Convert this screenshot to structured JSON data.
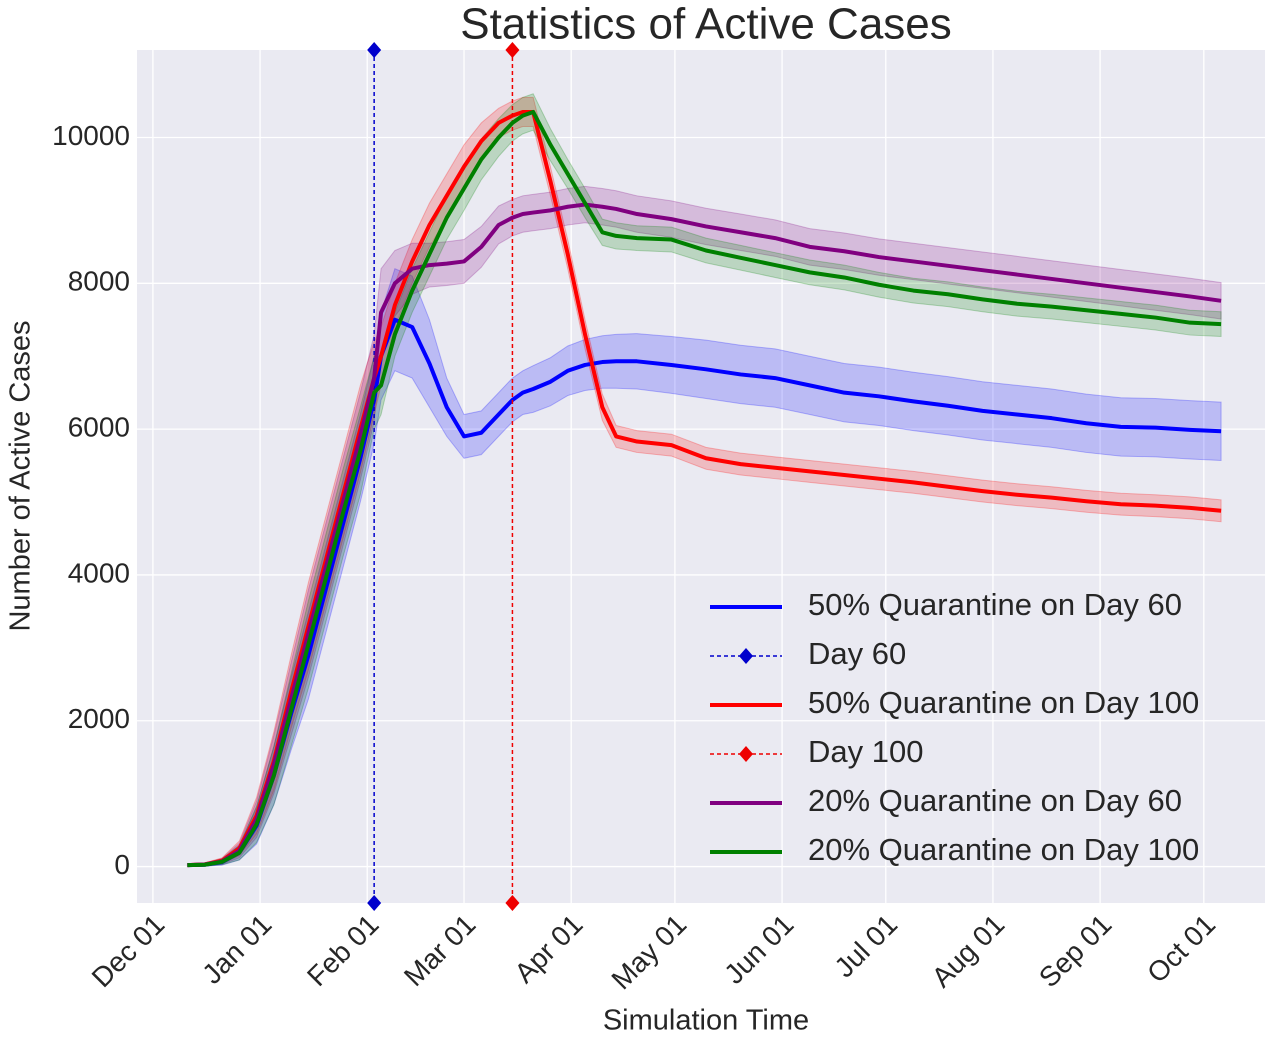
{
  "chart_data": {
    "type": "line",
    "title": "Statistics of Active Cases",
    "xlabel": "Simulation Time",
    "ylabel": "Number of Active Cases",
    "x": [
      10,
      15,
      20,
      25,
      30,
      35,
      40,
      45,
      50,
      55,
      60,
      64,
      66,
      70,
      75,
      80,
      85,
      90,
      95,
      100,
      104,
      107,
      110,
      115,
      120,
      125,
      130,
      134,
      140,
      150,
      160,
      170,
      180,
      190,
      200,
      210,
      220,
      230,
      240,
      250,
      260,
      270,
      280,
      290,
      300,
      309
    ],
    "xlim": [
      -4.6,
      321.7
    ],
    "xticks": [
      {
        "value": 0,
        "label": "Dec 01"
      },
      {
        "value": 31,
        "label": "Jan 01"
      },
      {
        "value": 62,
        "label": "Feb 01"
      },
      {
        "value": 90,
        "label": "Mar 01"
      },
      {
        "value": 121,
        "label": "Apr 01"
      },
      {
        "value": 151,
        "label": "May 01"
      },
      {
        "value": 182,
        "label": "Jun 01"
      },
      {
        "value": 212,
        "label": "Jul 01"
      },
      {
        "value": 243,
        "label": "Aug 01"
      },
      {
        "value": 274,
        "label": "Sep 01"
      },
      {
        "value": 304,
        "label": "Oct 01"
      }
    ],
    "ylim": [
      -500,
      11200
    ],
    "yticks": [
      0,
      2000,
      4000,
      6000,
      8000,
      10000
    ],
    "grid": true,
    "legend": "lower right",
    "series": [
      {
        "name": "50% Quarantine on Day 60",
        "color": "#0000ff",
        "values": [
          20,
          25,
          60,
          190,
          560,
          1250,
          2100,
          2900,
          3800,
          4700,
          5600,
          6400,
          7000,
          7500,
          7400,
          6900,
          6300,
          5900,
          5950,
          6200,
          6400,
          6500,
          6550,
          6650,
          6800,
          6880,
          6920,
          6930,
          6930,
          6880,
          6820,
          6750,
          6700,
          6600,
          6500,
          6450,
          6380,
          6320,
          6250,
          6200,
          6150,
          6080,
          6030,
          6020,
          5990,
          5970
        ],
        "errors": [
          20,
          20,
          40,
          100,
          250,
          400,
          500,
          600,
          600,
          600,
          600,
          600,
          600,
          700,
          700,
          600,
          400,
          300,
          300,
          300,
          300,
          300,
          320,
          330,
          340,
          350,
          360,
          370,
          380,
          390,
          400,
          400,
          400,
          400,
          400,
          400,
          400,
          400,
          400,
          400,
          400,
          400,
          400,
          400,
          400,
          400
        ]
      },
      {
        "name": "Day 60",
        "color": "#0000cc",
        "x": 64,
        "style": "dashed"
      },
      {
        "name": "50% Quarantine on Day 100",
        "color": "#ff0000",
        "values": [
          20,
          30,
          80,
          250,
          700,
          1450,
          2400,
          3300,
          4200,
          5100,
          6000,
          6700,
          7000,
          7700,
          8300,
          8800,
          9200,
          9600,
          9950,
          10200,
          10300,
          10350,
          10350,
          9400,
          8400,
          7300,
          6300,
          5900,
          5830,
          5780,
          5600,
          5520,
          5470,
          5420,
          5370,
          5320,
          5270,
          5210,
          5150,
          5100,
          5060,
          5010,
          4970,
          4950,
          4920,
          4880
        ],
        "errors": [
          20,
          20,
          40,
          100,
          250,
          400,
          500,
          600,
          600,
          600,
          600,
          500,
          400,
          300,
          300,
          300,
          300,
          300,
          250,
          200,
          200,
          200,
          200,
          200,
          200,
          200,
          180,
          150,
          150,
          150,
          150,
          150,
          150,
          150,
          150,
          150,
          150,
          150,
          150,
          150,
          150,
          150,
          150,
          150,
          150,
          150
        ]
      },
      {
        "name": "Day 100",
        "color": "#ee0000",
        "x": 104,
        "style": "dashed"
      },
      {
        "name": "20% Quarantine on Day 60",
        "color": "#800080",
        "values": [
          20,
          28,
          70,
          220,
          650,
          1400,
          2300,
          3200,
          4100,
          5000,
          5900,
          6700,
          7600,
          8000,
          8200,
          8250,
          8270,
          8300,
          8500,
          8800,
          8900,
          8950,
          8970,
          9000,
          9050,
          9080,
          9050,
          9020,
          8950,
          8880,
          8780,
          8700,
          8620,
          8500,
          8440,
          8360,
          8300,
          8240,
          8180,
          8120,
          8060,
          8000,
          7940,
          7880,
          7820,
          7760
        ],
        "errors": [
          20,
          20,
          40,
          100,
          250,
          400,
          500,
          600,
          600,
          600,
          600,
          600,
          600,
          450,
          350,
          300,
          300,
          300,
          280,
          260,
          250,
          250,
          250,
          250,
          250,
          250,
          250,
          250,
          250,
          250,
          250,
          250,
          250,
          250,
          250,
          250,
          250,
          250,
          250,
          250,
          250,
          250,
          250,
          250,
          250,
          250
        ]
      },
      {
        "name": "20% Quarantine on Day 100",
        "color": "#008000",
        "values": [
          20,
          25,
          65,
          190,
          580,
          1250,
          2150,
          3050,
          3950,
          4850,
          5700,
          6500,
          6600,
          7300,
          7900,
          8400,
          8900,
          9300,
          9700,
          10000,
          10200,
          10300,
          10350,
          9900,
          9500,
          9100,
          8700,
          8650,
          8620,
          8600,
          8450,
          8350,
          8250,
          8150,
          8080,
          7980,
          7900,
          7850,
          7780,
          7720,
          7680,
          7630,
          7580,
          7530,
          7460,
          7440
        ],
        "errors": [
          20,
          20,
          40,
          100,
          250,
          400,
          500,
          600,
          600,
          600,
          600,
          500,
          400,
          300,
          300,
          300,
          300,
          300,
          280,
          260,
          250,
          250,
          250,
          220,
          200,
          200,
          180,
          180,
          170,
          170,
          170,
          170,
          170,
          170,
          170,
          170,
          170,
          170,
          170,
          170,
          170,
          170,
          170,
          170,
          170,
          170
        ]
      }
    ]
  }
}
